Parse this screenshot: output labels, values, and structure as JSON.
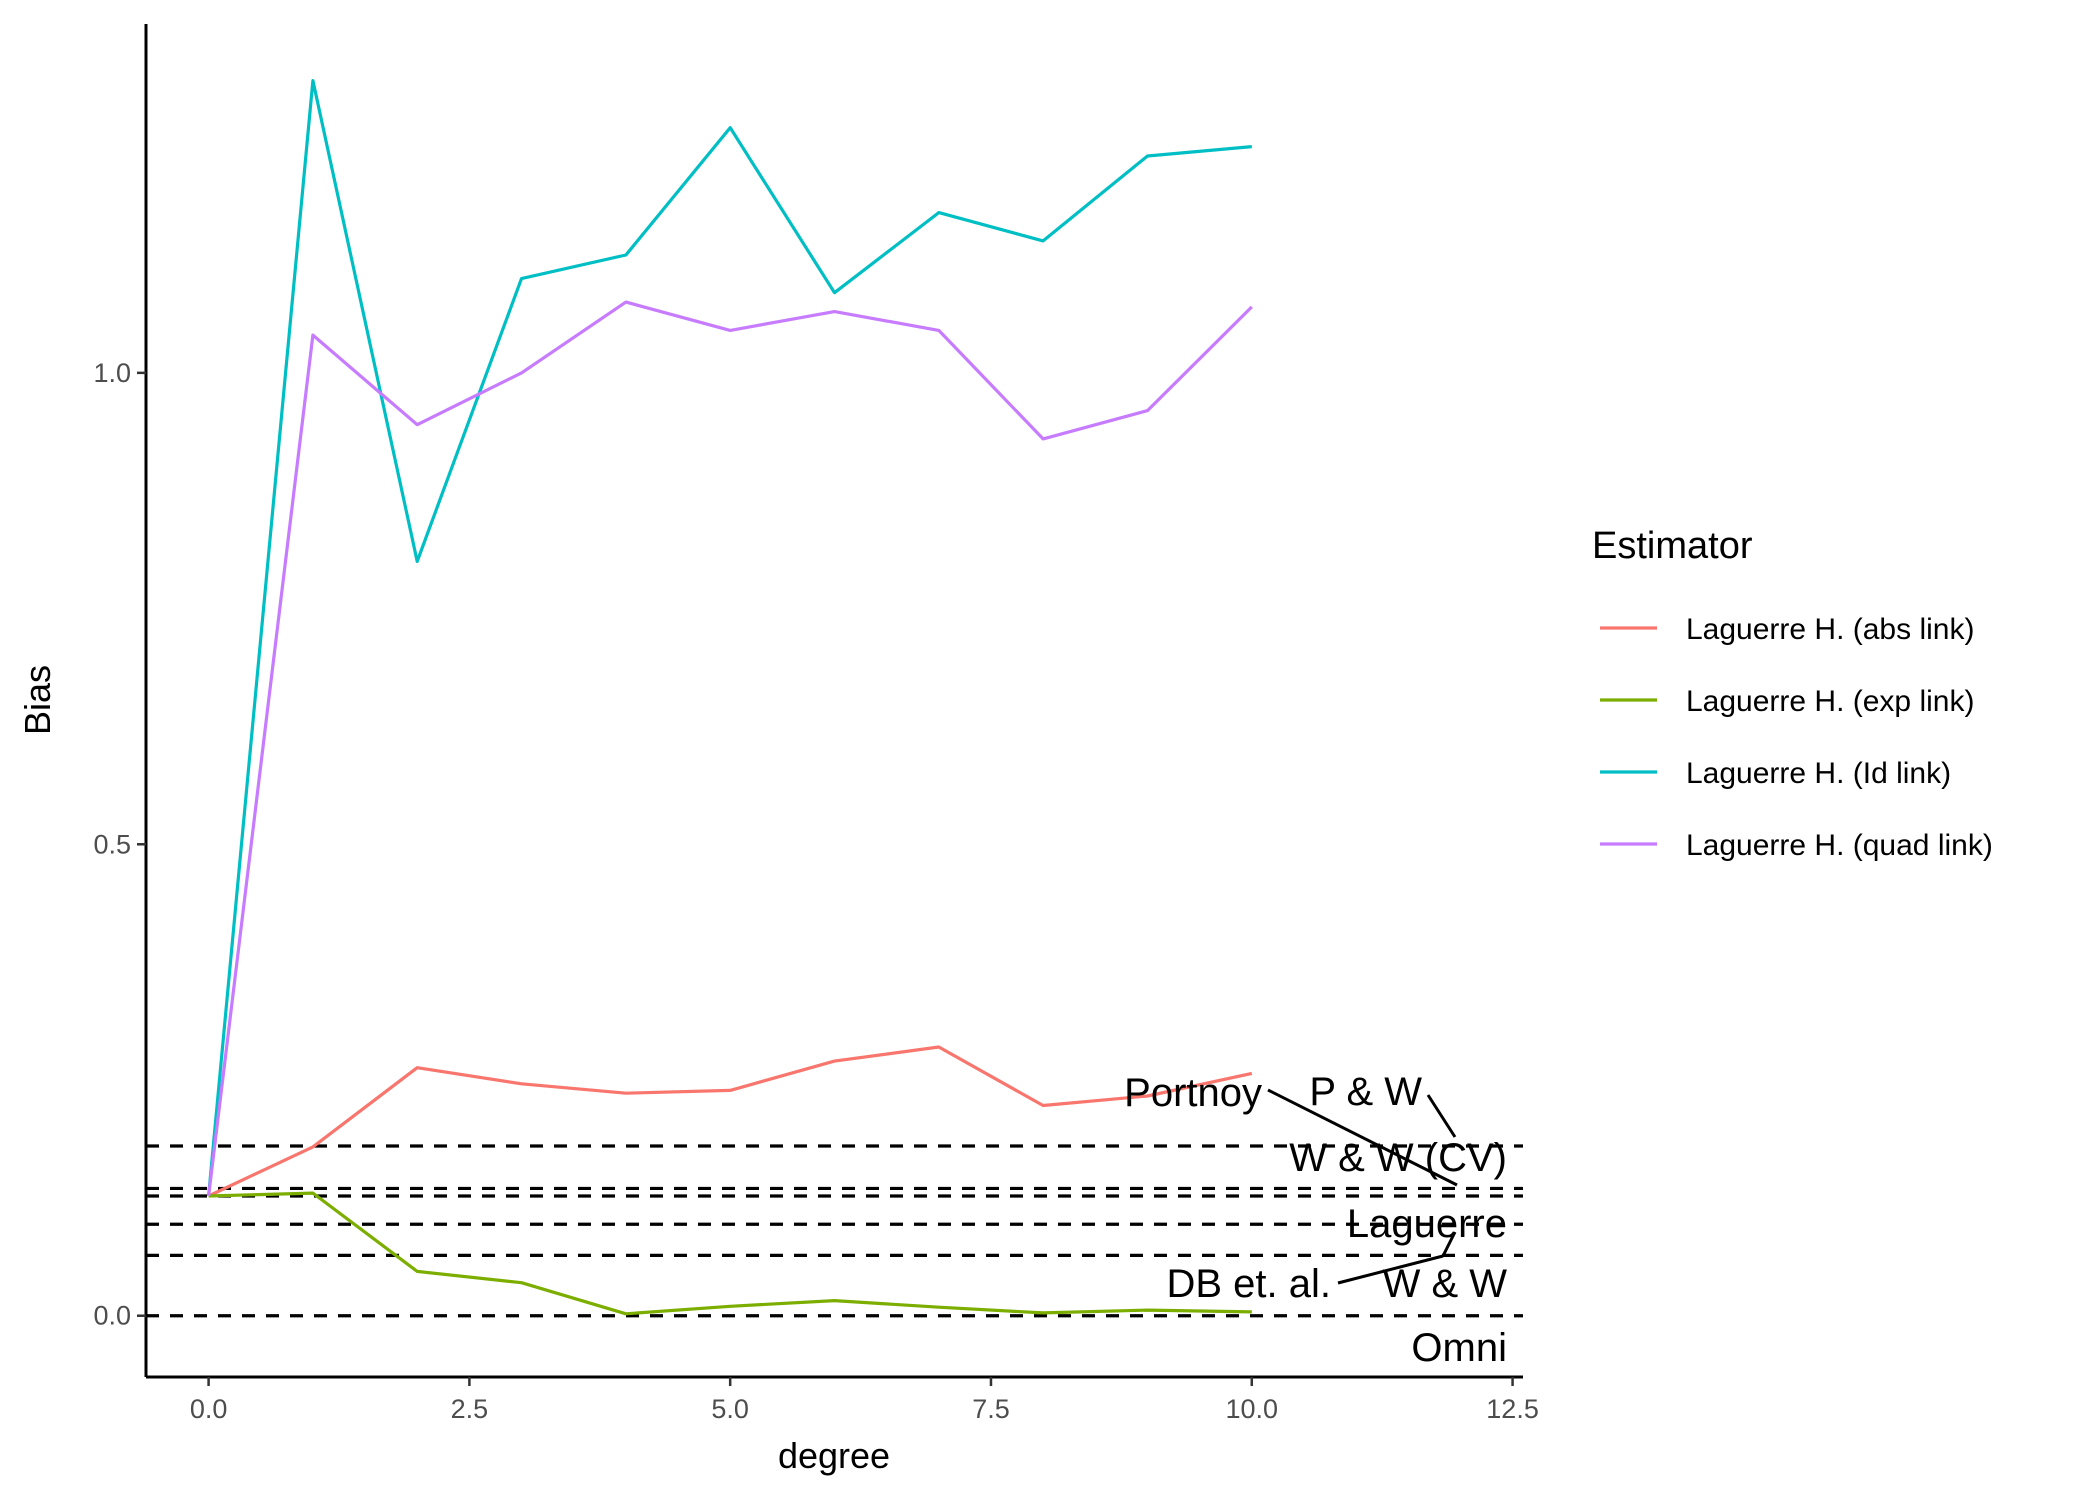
{
  "chart_data": {
    "type": "line",
    "xlabel": "degree",
    "ylabel": "Bias",
    "xlim": [
      -0.6,
      12.6
    ],
    "ylim": [
      -0.065,
      1.37
    ],
    "xticks": [
      0.0,
      2.5,
      5.0,
      7.5,
      10.0,
      12.5
    ],
    "xtick_labels": [
      "0.0",
      "2.5",
      "5.0",
      "7.5",
      "10.0",
      "12.5"
    ],
    "yticks": [
      0.0,
      0.5,
      1.0
    ],
    "ytick_labels": [
      "0.0",
      "0.5",
      "1.0"
    ],
    "grid": false,
    "legend_position": "right",
    "legend_title": "Estimator",
    "x": [
      0,
      1,
      2,
      3,
      4,
      5,
      6,
      7,
      8,
      9,
      10
    ],
    "series": [
      {
        "name": "Laguerre H. (abs link)",
        "color": "#F8766D",
        "values": [
          0.127,
          0.179,
          0.263,
          0.246,
          0.236,
          0.239,
          0.27,
          0.285,
          0.223,
          0.233,
          0.257
        ]
      },
      {
        "name": "Laguerre H. (exp link)",
        "color": "#7CAE00",
        "values": [
          0.127,
          0.13,
          0.047,
          0.035,
          0.002,
          0.01,
          0.016,
          0.009,
          0.003,
          0.006,
          0.004
        ]
      },
      {
        "name": "Laguerre H. (Id link)",
        "color": "#00BFC4",
        "values": [
          0.127,
          1.31,
          0.8,
          1.1,
          1.125,
          1.26,
          1.085,
          1.17,
          1.14,
          1.23,
          1.24
        ]
      },
      {
        "name": "Laguerre H. (quad link)",
        "color": "#C77CFF",
        "values": [
          0.127,
          1.04,
          0.945,
          1.0,
          1.075,
          1.045,
          1.065,
          1.045,
          0.93,
          0.96,
          1.07
        ]
      }
    ],
    "reference_lines": [
      {
        "label": "Portnoy",
        "y": 0.18
      },
      {
        "label": "P & W",
        "y": 0.135
      },
      {
        "label": "W & W (CV)",
        "y": 0.127
      },
      {
        "label": "Laguerre",
        "y": 0.097
      },
      {
        "label": "W & W",
        "y": 0.064
      },
      {
        "label": "DB et. al.",
        "y": 0.064
      },
      {
        "label": "Omni",
        "y": 0.0
      }
    ]
  }
}
